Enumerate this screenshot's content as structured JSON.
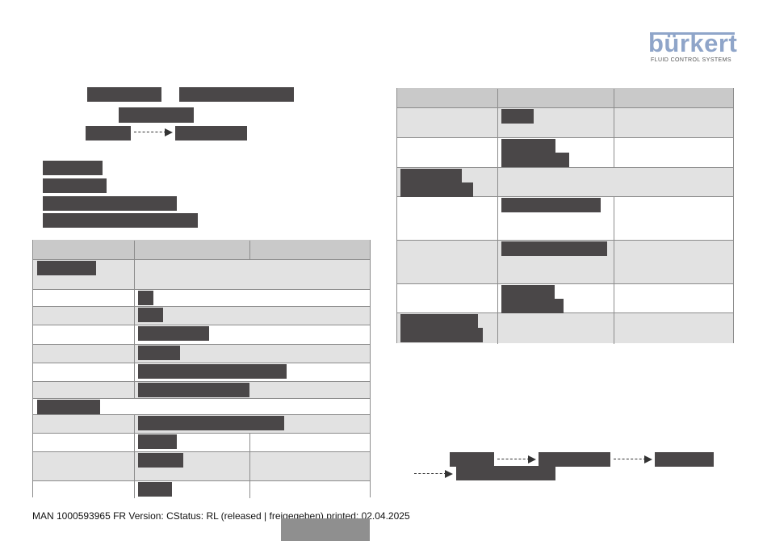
{
  "logo": {
    "name": "bürkert",
    "tagline": "FLUID CONTROL SYSTEMS",
    "color": "#8fa5c9"
  },
  "footer": {
    "text": "MAN  1000593965  FR  Version: CStatus: RL (released | freigegeben)  printed: 02.04.2025"
  },
  "colors": {
    "redaction": "#4a4748",
    "header_fill": "#c9c9c9",
    "shaded_row": "#e2e2e2",
    "border": "#8c8c8c"
  },
  "icons": [
    "dashed-arrow-icon"
  ]
}
